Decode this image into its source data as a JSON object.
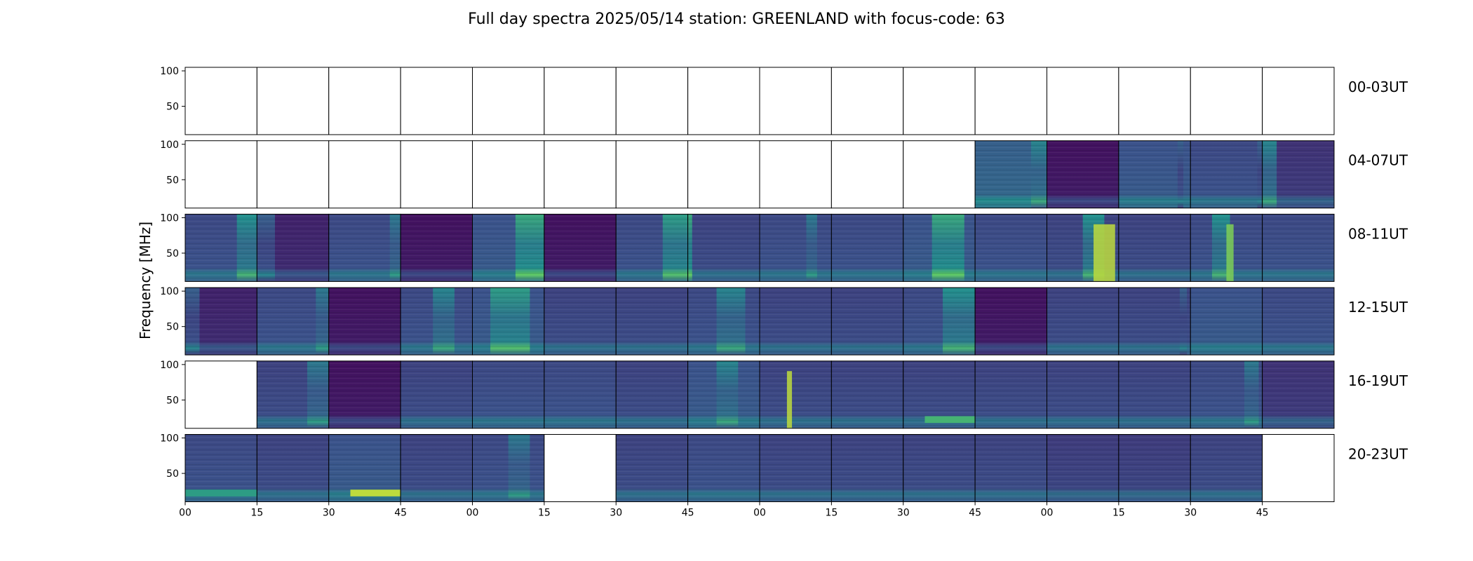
{
  "chart_data": {
    "type": "heatmap",
    "title": "Full day spectra 2025/05/14 station: GREENLAND with focus-code: 63",
    "ylabel": "Frequency [MHz]",
    "xlabel": "",
    "ylim": [
      10,
      105
    ],
    "y_ticks": [
      "100",
      "50"
    ],
    "y_tick_values": [
      100,
      50
    ],
    "x_tick_labels": [
      "00",
      "15",
      "30",
      "45",
      "00",
      "15",
      "30",
      "45",
      "00",
      "15",
      "30",
      "45",
      "00",
      "15",
      "30",
      "45"
    ],
    "colormap": [
      "#440154",
      "#3b528b",
      "#21918c",
      "#5ec962",
      "#fde725"
    ],
    "panels_per_row": 16,
    "rows": [
      {
        "label": "00-03UT",
        "panels": [
          {
            "data": false
          },
          {
            "data": false
          },
          {
            "data": false
          },
          {
            "data": false
          },
          {
            "data": false
          },
          {
            "data": false
          },
          {
            "data": false
          },
          {
            "data": false
          },
          {
            "data": false
          },
          {
            "data": false
          },
          {
            "data": false
          },
          {
            "data": false
          },
          {
            "data": false
          },
          {
            "data": false
          },
          {
            "data": false
          },
          {
            "data": false
          }
        ]
      },
      {
        "label": "04-07UT",
        "panels": [
          {
            "data": false
          },
          {
            "data": false
          },
          {
            "data": false
          },
          {
            "data": false
          },
          {
            "data": false
          },
          {
            "data": false
          },
          {
            "data": false
          },
          {
            "data": false
          },
          {
            "data": false
          },
          {
            "data": false
          },
          {
            "data": false
          },
          {
            "data": true,
            "level": 0.3,
            "band": [
              0.78,
              1.0,
              0.45
            ]
          },
          {
            "data": true,
            "level": 0.05
          },
          {
            "data": true,
            "level": 0.25,
            "band": [
              0.82,
              0.9,
              0.3
            ]
          },
          {
            "data": true,
            "level": 0.22,
            "band": [
              0.93,
              1.0,
              0.3
            ]
          },
          {
            "data": true,
            "level": 0.15,
            "band": [
              0.0,
              0.2,
              0.45
            ]
          }
        ]
      },
      {
        "label": "08-11UT",
        "panels": [
          {
            "data": true,
            "level": 0.22,
            "band": [
              0.72,
              1.0,
              0.5
            ]
          },
          {
            "data": true,
            "level": 0.1,
            "band": [
              0.0,
              0.25,
              0.3
            ]
          },
          {
            "data": true,
            "level": 0.22,
            "band": [
              0.85,
              1.0,
              0.4
            ]
          },
          {
            "data": true,
            "level": 0.05
          },
          {
            "data": true,
            "level": 0.25,
            "band": [
              0.6,
              1.0,
              0.6
            ]
          },
          {
            "data": true,
            "level": 0.05
          },
          {
            "data": true,
            "level": 0.22,
            "band": [
              0.65,
              1.0,
              0.55
            ]
          },
          {
            "data": true,
            "level": 0.2,
            "band": [
              0.0,
              0.06,
              0.6
            ]
          },
          {
            "data": true,
            "level": 0.22,
            "band": [
              0.65,
              0.8,
              0.4
            ]
          },
          {
            "data": true,
            "level": 0.22
          },
          {
            "data": true,
            "level": 0.25,
            "band": [
              0.4,
              0.85,
              0.6
            ]
          },
          {
            "data": true,
            "level": 0.22
          },
          {
            "data": true,
            "level": 0.2,
            "band": [
              0.5,
              0.8,
              0.5
            ],
            "burst": [
              0.65,
              0.95,
              0.9
            ]
          },
          {
            "data": true,
            "level": 0.2
          },
          {
            "data": true,
            "level": 0.22,
            "band": [
              0.3,
              0.55,
              0.5
            ],
            "burst": [
              0.5,
              0.6,
              0.8
            ]
          },
          {
            "data": true,
            "level": 0.22
          }
        ]
      },
      {
        "label": "12-15UT",
        "panels": [
          {
            "data": true,
            "level": 0.1,
            "band": [
              0.0,
              0.2,
              0.3
            ]
          },
          {
            "data": true,
            "level": 0.22,
            "band": [
              0.82,
              1.0,
              0.4
            ]
          },
          {
            "data": true,
            "level": 0.05
          },
          {
            "data": true,
            "level": 0.22,
            "band": [
              0.45,
              0.75,
              0.45
            ]
          },
          {
            "data": true,
            "level": 0.25,
            "band": [
              0.25,
              0.8,
              0.55
            ]
          },
          {
            "data": true,
            "level": 0.2
          },
          {
            "data": true,
            "level": 0.2
          },
          {
            "data": true,
            "level": 0.22,
            "band": [
              0.4,
              0.8,
              0.45
            ]
          },
          {
            "data": true,
            "level": 0.2
          },
          {
            "data": true,
            "level": 0.2
          },
          {
            "data": true,
            "level": 0.22,
            "band": [
              0.55,
              1.0,
              0.5
            ]
          },
          {
            "data": true,
            "level": 0.05
          },
          {
            "data": true,
            "level": 0.2
          },
          {
            "data": true,
            "level": 0.2,
            "band": [
              0.85,
              0.95,
              0.3
            ]
          },
          {
            "data": true,
            "level": 0.25
          },
          {
            "data": true,
            "level": 0.22
          }
        ]
      },
      {
        "label": "16-19UT",
        "panels": [
          {
            "data": false
          },
          {
            "data": true,
            "level": 0.2,
            "band": [
              0.7,
              1.0,
              0.4
            ]
          },
          {
            "data": true,
            "level": 0.05
          },
          {
            "data": true,
            "level": 0.2
          },
          {
            "data": true,
            "level": 0.22
          },
          {
            "data": true,
            "level": 0.22
          },
          {
            "data": true,
            "level": 0.2
          },
          {
            "data": true,
            "level": 0.25,
            "band": [
              0.4,
              0.7,
              0.45
            ]
          },
          {
            "data": true,
            "level": 0.2,
            "burst": [
              0.38,
              0.45,
              0.9
            ]
          },
          {
            "data": true,
            "level": 0.2
          },
          {
            "data": true,
            "level": 0.2,
            "low": [
              0.3,
              1.0,
              0.65
            ]
          },
          {
            "data": true,
            "level": 0.2
          },
          {
            "data": true,
            "level": 0.2
          },
          {
            "data": true,
            "level": 0.2
          },
          {
            "data": true,
            "level": 0.22,
            "band": [
              0.75,
              0.95,
              0.4
            ]
          },
          {
            "data": true,
            "level": 0.15
          }
        ]
      },
      {
        "label": "20-23UT",
        "panels": [
          {
            "data": true,
            "level": 0.22,
            "low": [
              0.0,
              1.0,
              0.55
            ]
          },
          {
            "data": true,
            "level": 0.2
          },
          {
            "data": true,
            "level": 0.25,
            "low": [
              0.3,
              1.0,
              0.9
            ]
          },
          {
            "data": true,
            "level": 0.2
          },
          {
            "data": true,
            "level": 0.22,
            "band": [
              0.5,
              0.8,
              0.4
            ]
          },
          {
            "data": false
          },
          {
            "data": true,
            "level": 0.2
          },
          {
            "data": true,
            "level": 0.22
          },
          {
            "data": true,
            "level": 0.2
          },
          {
            "data": true,
            "level": 0.2
          },
          {
            "data": true,
            "level": 0.2
          },
          {
            "data": true,
            "level": 0.2
          },
          {
            "data": true,
            "level": 0.18
          },
          {
            "data": true,
            "level": 0.18
          },
          {
            "data": true,
            "level": 0.2
          },
          {
            "data": false
          }
        ]
      }
    ]
  }
}
